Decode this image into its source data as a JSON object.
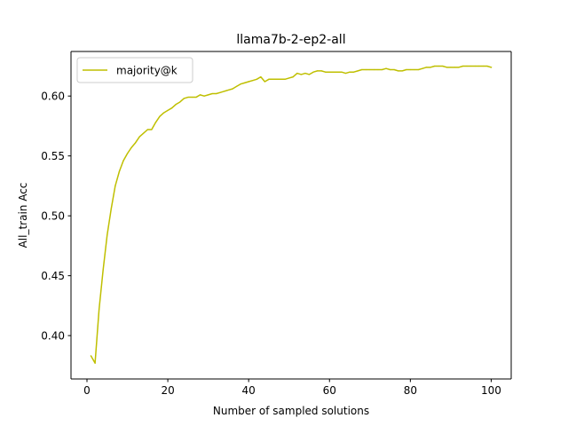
{
  "chart_data": {
    "type": "line",
    "title": "llama7b-2-ep2-all",
    "xlabel": "Number of sampled solutions",
    "ylabel": "All_train Acc",
    "xlim": [
      -3.95,
      104.95
    ],
    "ylim": [
      0.3638,
      0.6372
    ],
    "xticks": [
      0,
      20,
      40,
      60,
      80,
      100
    ],
    "yticks": [
      0.4,
      0.45,
      0.5,
      0.55,
      0.6
    ],
    "xtick_labels": [
      "0",
      "20",
      "40",
      "60",
      "80",
      "100"
    ],
    "ytick_labels": [
      "0.40",
      "0.45",
      "0.50",
      "0.55",
      "0.60"
    ],
    "grid": false,
    "legend_position": "top-left",
    "series": [
      {
        "name": "majority@k",
        "color": "#bfbf00",
        "x": [
          1,
          2,
          3,
          4,
          5,
          6,
          7,
          8,
          9,
          10,
          11,
          12,
          13,
          14,
          15,
          16,
          17,
          18,
          19,
          20,
          21,
          22,
          23,
          24,
          25,
          26,
          27,
          28,
          29,
          30,
          31,
          32,
          33,
          34,
          35,
          36,
          37,
          38,
          39,
          40,
          41,
          42,
          43,
          44,
          45,
          46,
          47,
          48,
          49,
          50,
          51,
          52,
          53,
          54,
          55,
          56,
          57,
          58,
          59,
          60,
          61,
          62,
          63,
          64,
          65,
          66,
          67,
          68,
          69,
          70,
          71,
          72,
          73,
          74,
          75,
          76,
          77,
          78,
          79,
          80,
          81,
          82,
          83,
          84,
          85,
          86,
          87,
          88,
          89,
          90,
          91,
          92,
          93,
          94,
          95,
          96,
          97,
          98,
          99,
          100
        ],
        "values": [
          0.383,
          0.377,
          0.422,
          0.455,
          0.484,
          0.506,
          0.525,
          0.537,
          0.546,
          0.552,
          0.557,
          0.561,
          0.566,
          0.569,
          0.572,
          0.572,
          0.578,
          0.583,
          0.586,
          0.588,
          0.59,
          0.593,
          0.595,
          0.598,
          0.599,
          0.599,
          0.599,
          0.601,
          0.6,
          0.601,
          0.602,
          0.602,
          0.603,
          0.604,
          0.605,
          0.606,
          0.608,
          0.61,
          0.611,
          0.612,
          0.613,
          0.614,
          0.616,
          0.612,
          0.614,
          0.614,
          0.614,
          0.614,
          0.614,
          0.615,
          0.616,
          0.619,
          0.618,
          0.619,
          0.618,
          0.62,
          0.621,
          0.621,
          0.62,
          0.62,
          0.62,
          0.62,
          0.62,
          0.619,
          0.62,
          0.62,
          0.621,
          0.622,
          0.622,
          0.622,
          0.622,
          0.622,
          0.622,
          0.623,
          0.622,
          0.622,
          0.621,
          0.621,
          0.622,
          0.622,
          0.622,
          0.622,
          0.623,
          0.624,
          0.624,
          0.625,
          0.625,
          0.625,
          0.624,
          0.624,
          0.624,
          0.624,
          0.625,
          0.625,
          0.625,
          0.625,
          0.625,
          0.625,
          0.625,
          0.624
        ]
      }
    ]
  }
}
